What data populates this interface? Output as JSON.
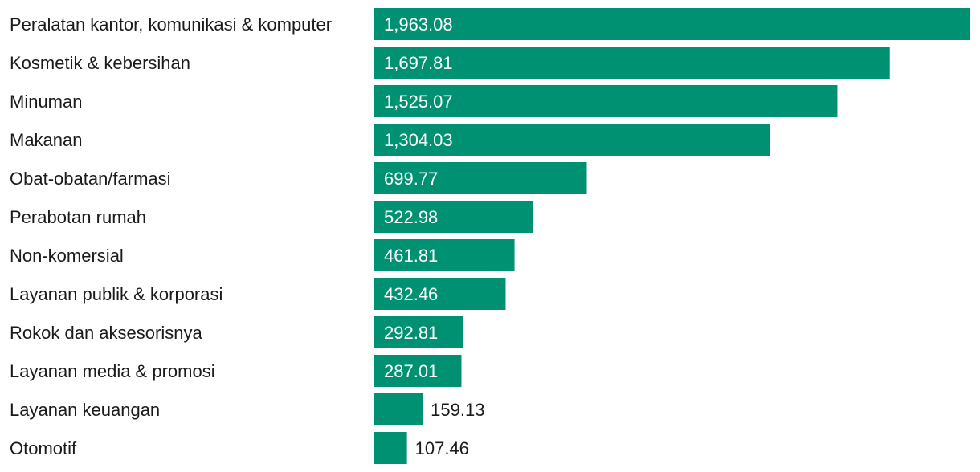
{
  "chart_data": {
    "type": "bar",
    "orientation": "horizontal",
    "title": "",
    "xlabel": "",
    "ylabel": "",
    "grid": false,
    "legend": "none",
    "bar_color": "#009172",
    "label_inside_color": "#ffffff",
    "label_outside_color": "#1a1a1a",
    "categories": [
      "Peralatan kantor, komunikasi & komputer",
      "Kosmetik & kebersihan",
      "Minuman",
      "Makanan",
      "Obat-obatan/farmasi",
      "Perabotan rumah",
      "Non-komersial",
      "Layanan publik & korporasi",
      "Rokok dan aksesorisnya",
      "Layanan media & promosi",
      "Layanan keuangan",
      "Otomotif"
    ],
    "values": [
      1963.08,
      1697.81,
      1525.07,
      1304.03,
      699.77,
      522.98,
      461.81,
      432.46,
      292.81,
      287.01,
      159.13,
      107.46
    ],
    "value_labels": [
      "1,963.08",
      "1,697.81",
      "1,525.07",
      "1,304.03",
      "699.77",
      "522.98",
      "461.81",
      "432.46",
      "292.81",
      "287.01",
      "159.13",
      "107.46"
    ],
    "xlim": [
      0,
      1963.08
    ]
  }
}
